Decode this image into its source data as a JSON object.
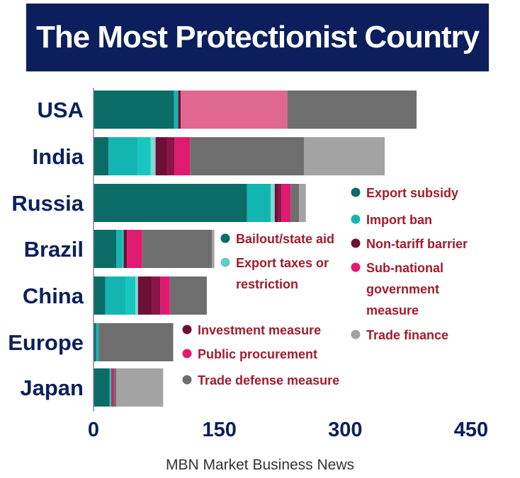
{
  "chart_data": {
    "type": "bar",
    "stacked": true,
    "orientation": "horizontal",
    "title": "The Most Protectionist Country",
    "categories": [
      "USA",
      "India",
      "Russia",
      "Brazil",
      "China",
      "Europe",
      "Japan"
    ],
    "xlim": [
      0,
      450
    ],
    "xticks": [
      "0",
      "150",
      "300",
      "450"
    ],
    "grid": false,
    "series": [
      {
        "name": "Export subsidy",
        "color": "#0b6b66",
        "values": [
          96,
          18,
          183,
          27,
          14,
          3,
          19
        ]
      },
      {
        "name": "Import ban",
        "color": "#14b5b0",
        "values": [
          5,
          35,
          28,
          7,
          24,
          3,
          0
        ]
      },
      {
        "name": "Bailout/state aid",
        "color": "#17c7bf",
        "values": [
          0,
          15,
          0,
          2,
          12,
          0,
          2
        ]
      },
      {
        "name": "Export taxes or restriction",
        "color": "#7fd8d3",
        "values": [
          0,
          6,
          5,
          0,
          3,
          0,
          0
        ]
      },
      {
        "name": "Non-tariff barrier",
        "color": "#6e0f35",
        "values": [
          3,
          13,
          4,
          4,
          17,
          0,
          0
        ]
      },
      {
        "name": "Investment measure",
        "color": "#8d1447",
        "values": [
          0,
          10,
          4,
          0,
          10,
          0,
          0
        ]
      },
      {
        "name": "Public procurement",
        "color": "#e01a6e",
        "values": [
          0,
          18,
          11,
          18,
          11,
          0,
          3
        ]
      },
      {
        "name": "Sub-national government measure",
        "color": "#e0678f",
        "values": [
          127,
          0,
          0,
          0,
          0,
          0,
          0
        ]
      },
      {
        "name": "Trade defense measure",
        "color": "#6e6e6e",
        "values": [
          154,
          136,
          10,
          83,
          44,
          89,
          3
        ]
      },
      {
        "name": "Trade finance",
        "color": "#a3a3a3",
        "values": [
          0,
          96,
          8,
          3,
          0,
          0,
          56
        ]
      }
    ]
  },
  "legend": {
    "right": [
      {
        "label": "Export subsidy",
        "color": "#0b6b66"
      },
      {
        "label": "Import ban",
        "color": "#14b5b0"
      },
      {
        "label": "Non-tariff barrier",
        "color": "#6e0f35"
      },
      {
        "label": "Sub-national government measure",
        "color": "#e01a6e"
      },
      {
        "label": "Trade finance",
        "color": "#a3a3a3"
      }
    ],
    "middle_top": [
      {
        "label": "Bailout/state aid",
        "color": "#0b6b66"
      },
      {
        "label": "Export taxes or restriction",
        "color": "#5fcdc8"
      }
    ],
    "middle_bottom": [
      {
        "label": "Investment measure",
        "color": "#6e0f35"
      },
      {
        "label": "Public procurement",
        "color": "#e01a6e"
      },
      {
        "label": "Trade defense measure",
        "color": "#6e6e6e"
      }
    ]
  },
  "source": "MBN Market Business News"
}
